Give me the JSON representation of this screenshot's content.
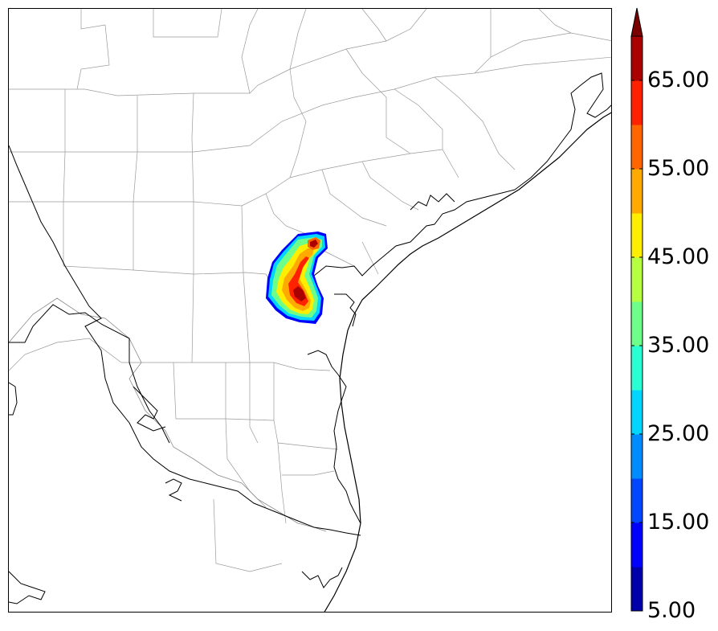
{
  "colorbar": {
    "ticks": [
      "5.00",
      "15.00",
      "25.00",
      "35.00",
      "45.00",
      "55.00",
      "65.00"
    ],
    "tick_values": [
      5,
      15,
      25,
      35,
      45,
      55,
      65
    ],
    "range": [
      5,
      70
    ],
    "step": 5,
    "extend": "max",
    "colors": [
      "#0000aa",
      "#0000ff",
      "#0047ff",
      "#008cff",
      "#00d6ff",
      "#2affd4",
      "#6dff89",
      "#b6ff41",
      "#ffee00",
      "#ffaa00",
      "#ff6600",
      "#ff2200",
      "#aa0000",
      "#7a0000"
    ],
    "extend_color": "#7a0000"
  }
}
